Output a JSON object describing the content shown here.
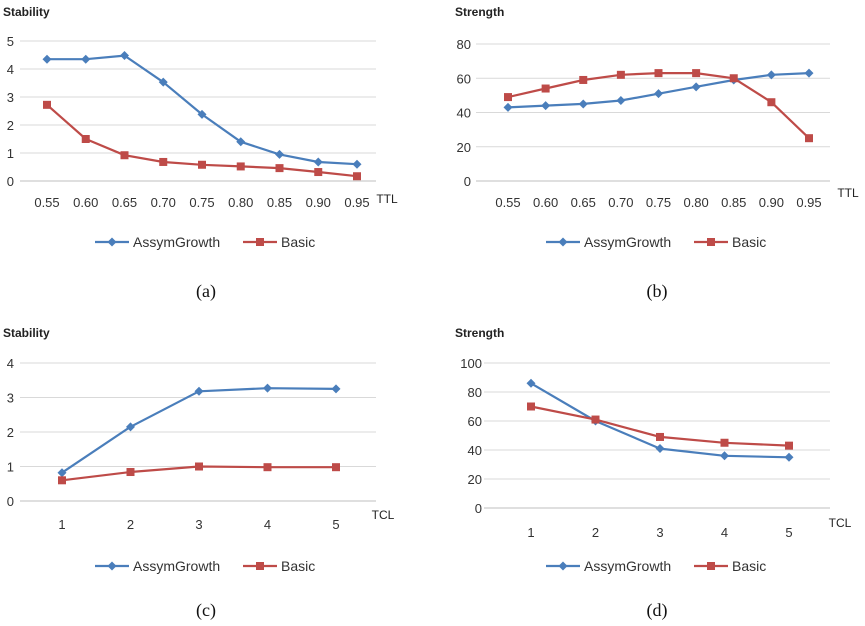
{
  "colors": {
    "assym": "#4a7ebb",
    "basic": "#be4b48"
  },
  "chart_data": [
    {
      "panel": "a",
      "type": "line",
      "caption": "(a)",
      "ylabel": "Stability",
      "xlabel": "TTL",
      "categories": [
        "0.55",
        "0.60",
        "0.65",
        "0.70",
        "0.75",
        "0.80",
        "0.85",
        "0.90",
        "0.95"
      ],
      "ylim": [
        0,
        5
      ],
      "yticks": [
        0,
        1,
        2,
        3,
        4,
        5
      ],
      "legend_position": "bottom",
      "series": [
        {
          "name": "AssymGrowth",
          "marker": "diamond",
          "color": "#4a7ebb",
          "values": [
            4.35,
            4.35,
            4.48,
            3.53,
            2.38,
            1.4,
            0.95,
            0.68,
            0.6
          ]
        },
        {
          "name": "Basic",
          "marker": "square",
          "color": "#be4b48",
          "values": [
            2.72,
            1.5,
            0.92,
            0.68,
            0.58,
            0.52,
            0.46,
            0.32,
            0.17
          ]
        }
      ]
    },
    {
      "panel": "b",
      "type": "line",
      "caption": "(b)",
      "ylabel": "Strength",
      "xlabel": "TTL",
      "categories": [
        "0.55",
        "0.60",
        "0.65",
        "0.70",
        "0.75",
        "0.80",
        "0.85",
        "0.90",
        "0.95"
      ],
      "ylim": [
        0,
        80
      ],
      "yticks": [
        0,
        20,
        40,
        60,
        80
      ],
      "legend_position": "bottom",
      "series": [
        {
          "name": "AssymGrowth",
          "marker": "diamond",
          "color": "#4a7ebb",
          "values": [
            43,
            44,
            45,
            47,
            51,
            55,
            59,
            62,
            63
          ]
        },
        {
          "name": "Basic",
          "marker": "square",
          "color": "#be4b48",
          "values": [
            49,
            54,
            59,
            62,
            63,
            63,
            60,
            46,
            25
          ]
        }
      ]
    },
    {
      "panel": "c",
      "type": "line",
      "caption": "(c)",
      "ylabel": "Stability",
      "xlabel": "TCL",
      "categories": [
        "1",
        "2",
        "3",
        "4",
        "5"
      ],
      "ylim": [
        0,
        4
      ],
      "yticks": [
        0,
        1,
        2,
        3,
        4
      ],
      "legend_position": "bottom",
      "series": [
        {
          "name": "AssymGrowth",
          "marker": "diamond",
          "color": "#4a7ebb",
          "values": [
            0.82,
            2.15,
            3.18,
            3.27,
            3.25
          ]
        },
        {
          "name": "Basic",
          "marker": "square",
          "color": "#be4b48",
          "values": [
            0.6,
            0.84,
            1.0,
            0.98,
            0.98
          ]
        }
      ]
    },
    {
      "panel": "d",
      "type": "line",
      "caption": "(d)",
      "ylabel": "Strength",
      "xlabel": "TCL",
      "categories": [
        "1",
        "2",
        "3",
        "4",
        "5"
      ],
      "ylim": [
        0,
        100
      ],
      "yticks": [
        0,
        20,
        40,
        60,
        80,
        100
      ],
      "legend_position": "bottom",
      "series": [
        {
          "name": "AssymGrowth",
          "marker": "diamond",
          "color": "#4a7ebb",
          "values": [
            86,
            60,
            41,
            36,
            35
          ]
        },
        {
          "name": "Basic",
          "marker": "square",
          "color": "#be4b48",
          "values": [
            70,
            61,
            49,
            45,
            43
          ]
        }
      ]
    }
  ]
}
